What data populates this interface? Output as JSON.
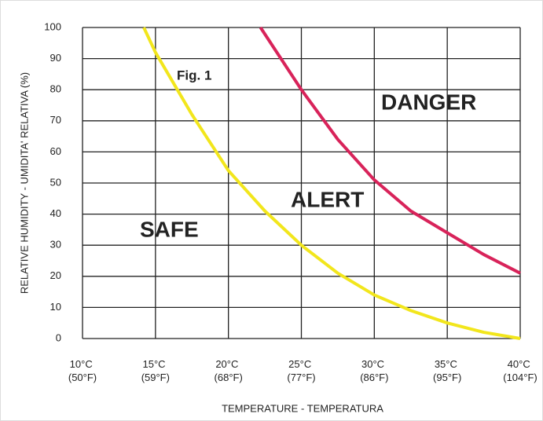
{
  "chart_data": {
    "type": "line",
    "xlabel": "TEMPERATURE - TEMPERATURA",
    "ylabel": "RELATIVE HUMIDITY - UMIDITA' RELATIVA (%)",
    "xlim": [
      10,
      40
    ],
    "ylim": [
      0,
      100
    ],
    "xticks": [
      {
        "value": 10,
        "label": "10°C (50°F)"
      },
      {
        "value": 15,
        "label": "15°C (59°F)"
      },
      {
        "value": 20,
        "label": "20°C (68°F)"
      },
      {
        "value": 25,
        "label": "25°C (77°F)"
      },
      {
        "value": 30,
        "label": "30°C (86°F)"
      },
      {
        "value": 35,
        "label": "35°C (95°F)"
      },
      {
        "value": 40,
        "label": "40°C (104°F)"
      }
    ],
    "yticks": [
      0,
      10,
      20,
      30,
      40,
      50,
      60,
      70,
      80,
      90,
      100
    ],
    "grid": true,
    "series": [
      {
        "color": "#f2e61c",
        "x": [
          14.2,
          15,
          17.5,
          20,
          22.5,
          25,
          27.5,
          30,
          32.5,
          35,
          37.5,
          40
        ],
        "values": [
          100,
          92,
          72,
          54,
          41,
          30,
          21,
          14,
          9,
          5,
          2,
          0
        ]
      },
      {
        "color": "#d8235a",
        "x": [
          22.2,
          25,
          27.5,
          30,
          32.5,
          35,
          37.5,
          40
        ],
        "values": [
          100,
          80,
          64,
          51,
          41,
          34,
          27,
          21
        ]
      }
    ],
    "annotations": [
      {
        "text": "Fig. 1",
        "color": "#111111"
      },
      {
        "text": "DANGER",
        "color": "#d8235a"
      },
      {
        "text": "ALERT",
        "color": "#e8572a"
      },
      {
        "text": "SAFE",
        "color": "#1f6fb5"
      }
    ]
  }
}
